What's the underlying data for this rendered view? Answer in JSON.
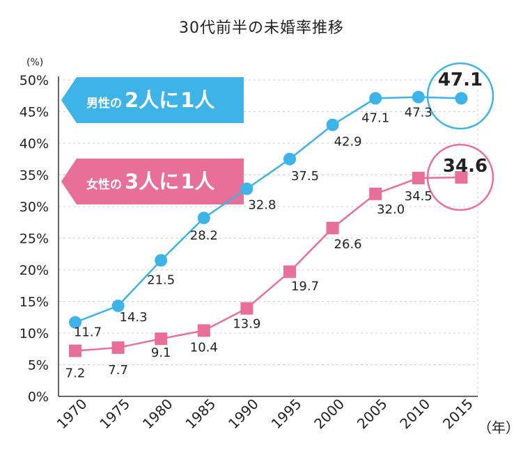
{
  "title": "30代前半の未婚率推移",
  "chart_data": {
    "type": "line",
    "title": "30代前半の未婚率推移",
    "ylabel": "(%)",
    "xlabel": "（年）",
    "ylim": [
      0,
      50
    ],
    "y_ticks": [
      "0%",
      "5%",
      "10%",
      "15%",
      "20%",
      "25%",
      "30%",
      "35%",
      "40%",
      "45%",
      "50%"
    ],
    "categories": [
      "1970",
      "1975",
      "1980",
      "1985",
      "1990",
      "1995",
      "2000",
      "2005",
      "2010",
      "2015"
    ],
    "series": [
      {
        "values": [
          11.7,
          14.3,
          21.5,
          28.2,
          32.8,
          37.5,
          42.9,
          47.1,
          47.3,
          47.1
        ],
        "color": "#3db3e8",
        "marker": "circle"
      },
      {
        "values": [
          7.2,
          7.7,
          9.1,
          10.4,
          13.9,
          19.7,
          26.6,
          32.0,
          34.5,
          34.6
        ],
        "color": "#e86f98",
        "marker": "square"
      }
    ],
    "point_labels": [
      [
        "11.7",
        "14.3",
        "21.5",
        "28.2",
        "32.8",
        "37.5",
        "42.9",
        "47.1",
        "47.3",
        "47.1"
      ],
      [
        "7.2",
        "7.7",
        "9.1",
        "10.4",
        "13.9",
        "19.7",
        "26.6",
        "32.0",
        "34.5",
        "34.6"
      ]
    ],
    "callouts": [
      {
        "prefix": "男性の",
        "num1": "2",
        "mid": "人に",
        "num2": "1",
        "suffix": "人",
        "color": "#3db3e8"
      },
      {
        "prefix": "女性の",
        "num1": "3",
        "mid": "人に",
        "num2": "1",
        "suffix": "人",
        "color": "#e86f98"
      }
    ],
    "grid": true,
    "grid_color": "#cccccc"
  }
}
